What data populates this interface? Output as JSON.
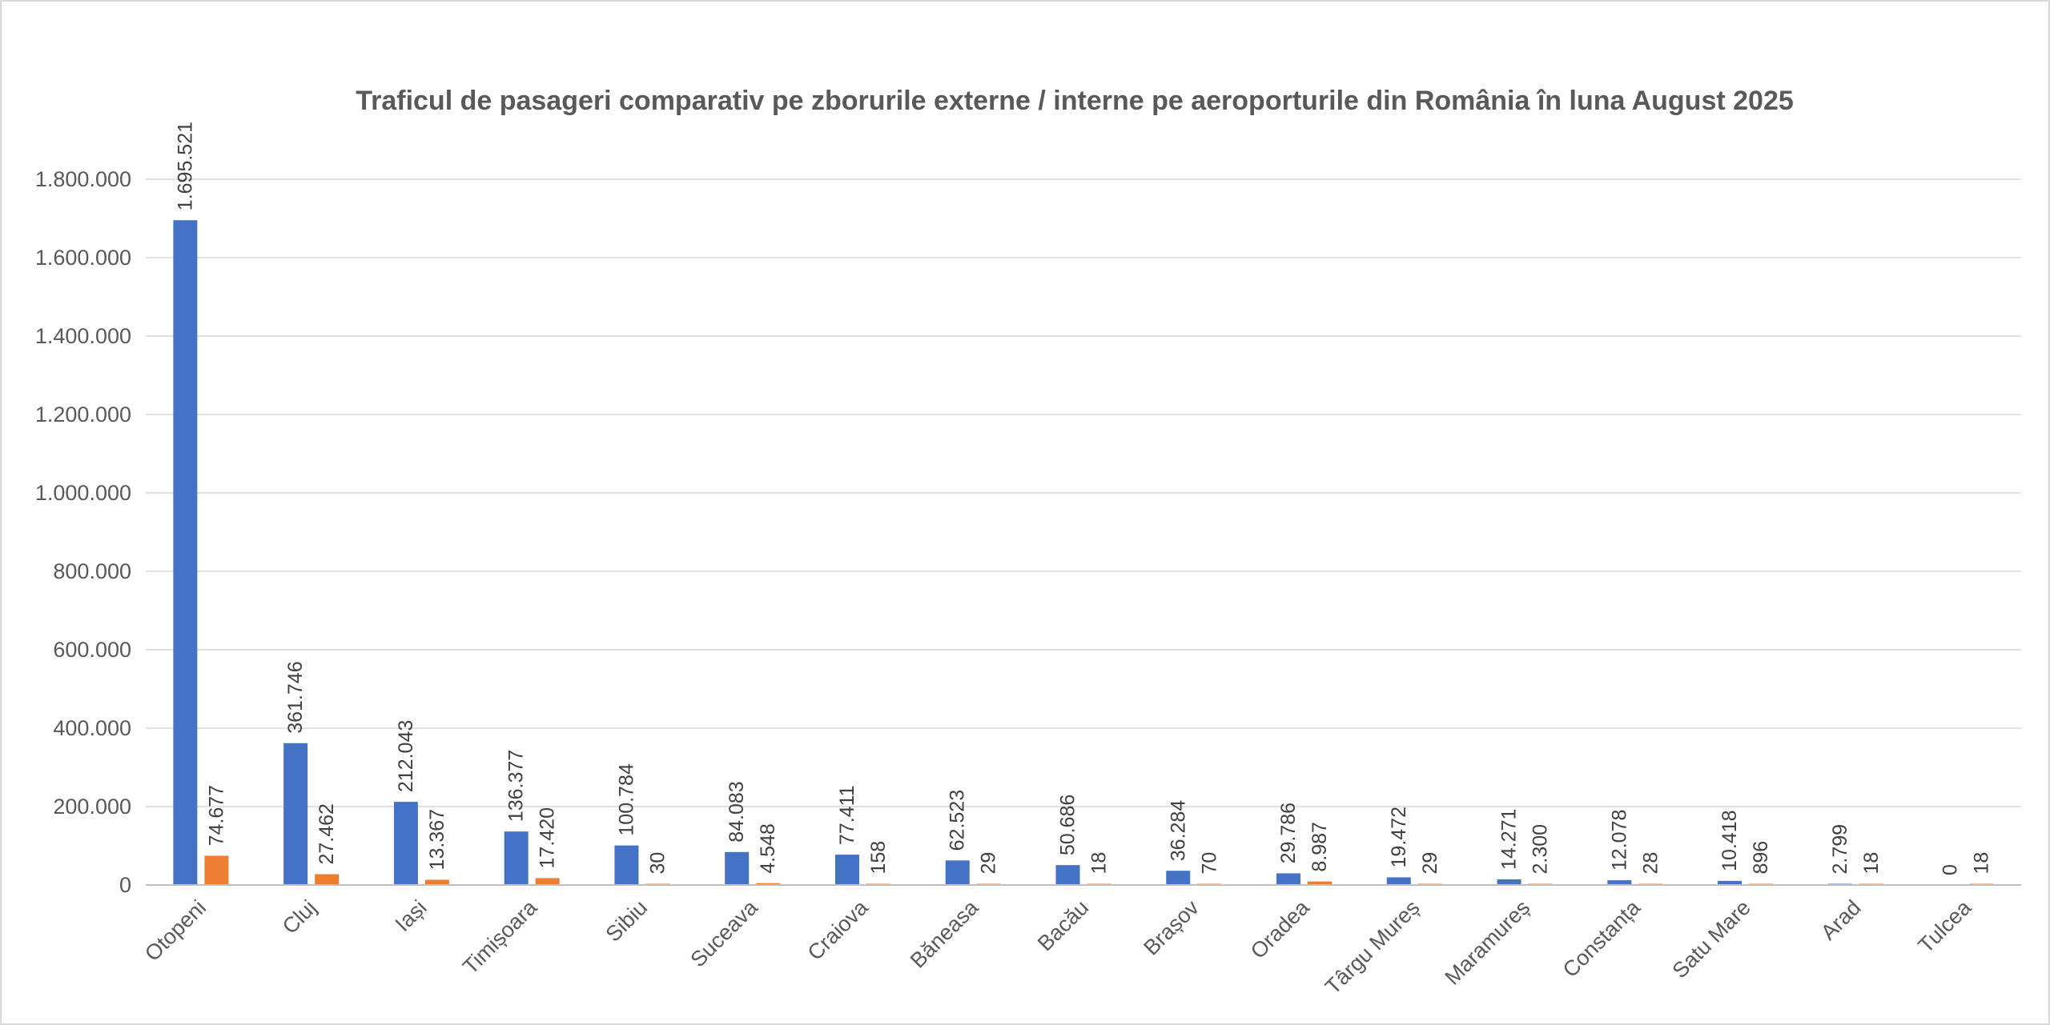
{
  "chart_data": {
    "type": "bar",
    "title": "Traficul de pasageri comparativ pe zborurile externe / interne pe aeroporturile din România în luna August 2025",
    "xlabel": "",
    "ylabel": "",
    "ylim": [
      0,
      1800000
    ],
    "ytick_values": [
      0,
      200000,
      400000,
      600000,
      800000,
      1000000,
      1200000,
      1400000,
      1600000,
      1800000
    ],
    "ytick_labels": [
      "0",
      "200.000",
      "400.000",
      "600.000",
      "800.000",
      "1.000.000",
      "1.200.000",
      "1.400.000",
      "1.600.000",
      "1.800.000"
    ],
    "grid": true,
    "legend": "none",
    "categories": [
      "Otopeni",
      "Cluj",
      "Iași",
      "Timișoara",
      "Sibiu",
      "Suceava",
      "Craiova",
      "Băneasa",
      "Bacău",
      "Brașov",
      "Oradea",
      "Târgu Mureș",
      "Maramureș",
      "Constanța",
      "Satu Mare",
      "Arad",
      "Tulcea"
    ],
    "series": [
      {
        "color": "#4472c4",
        "values": [
          1695521,
          361746,
          212043,
          136377,
          100784,
          84083,
          77411,
          62523,
          50686,
          36284,
          29786,
          19472,
          14271,
          12078,
          10418,
          2799,
          0
        ],
        "labels": [
          "1.695.521",
          "361.746",
          "212.043",
          "136.377",
          "100.784",
          "84.083",
          "77.411",
          "62.523",
          "50.686",
          "36.284",
          "29.786",
          "19.472",
          "14.271",
          "12.078",
          "10.418",
          "2.799",
          "0"
        ]
      },
      {
        "color": "#ed7d31",
        "values": [
          74677,
          27462,
          13367,
          17420,
          30,
          4548,
          158,
          29,
          18,
          70,
          8987,
          29,
          2300,
          28,
          896,
          18,
          18
        ],
        "labels": [
          "74.677",
          "27.462",
          "13.367",
          "17.420",
          "30",
          "4.548",
          "158",
          "29",
          "18",
          "70",
          "8.987",
          "29",
          "2.300",
          "28",
          "896",
          "18",
          "18"
        ]
      }
    ]
  }
}
